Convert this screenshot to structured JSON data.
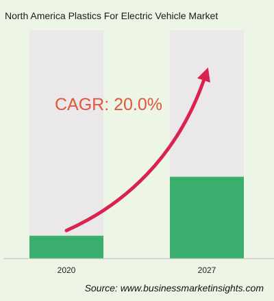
{
  "chart_data": {
    "type": "bar",
    "title": "North America Plastics For Electric Vehicle Market",
    "categories": [
      "2020",
      "2027"
    ],
    "values": [
      1,
      3.58
    ],
    "ylim": [
      0,
      10
    ],
    "annotation": "CAGR: 20.0%",
    "source": "Source: www.businessmarketinsights.com",
    "colors": {
      "bar": "#3aaf6d",
      "track": "#ebe8ea",
      "arrow": "#d9224e",
      "cagr_text": "#e2553a",
      "background": "#edf5e6"
    }
  }
}
